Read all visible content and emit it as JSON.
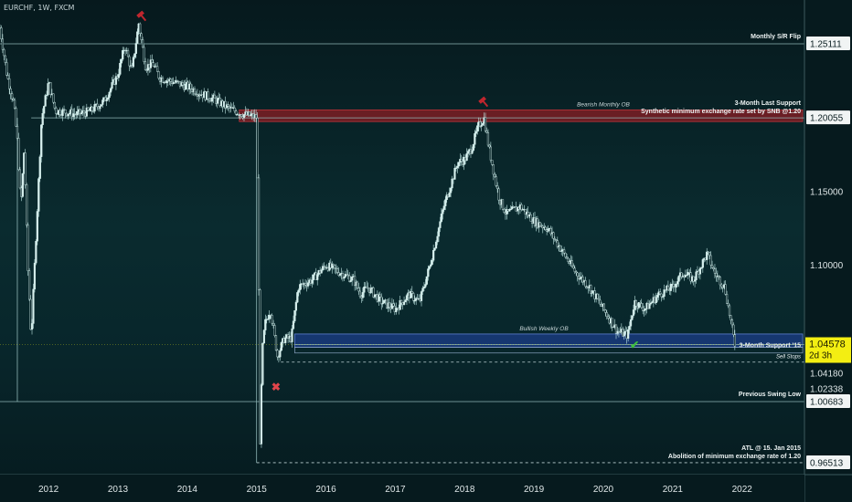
{
  "symbol": "EURCHF, 1W, FXCM",
  "colors": {
    "candle": "#d7f0ee",
    "wick": "#bfe6e3",
    "bearish_zone": "#8b1e24",
    "bullish_zone": "#1d3f8f",
    "line": "#8fb6b6",
    "current": "#f3ee12",
    "mark": "#c0262e",
    "check": "#3fbf3f"
  },
  "chart_data": {
    "type": "line",
    "title": "",
    "xlabel": "",
    "ylabel": "",
    "xlim": [
      2011.3,
      2022.9
    ],
    "ylim": [
      0.957,
      1.281
    ],
    "x_ticks": [
      "2012",
      "2013",
      "2014",
      "2015",
      "2016",
      "2017",
      "2018",
      "2019",
      "2020",
      "2021",
      "2022"
    ],
    "y_price_labels": [
      "1.25111",
      "1.20055",
      "1.15000",
      "1.10000",
      "1.04180",
      "1.02338",
      "1.00683",
      "0.96513"
    ],
    "current_price": "1.04578",
    "countdown": "2d 3h",
    "series": [
      {
        "x": [
          2011.3,
          2011.4,
          2011.5,
          2011.55,
          2011.6,
          2011.65,
          2011.7,
          2011.75,
          2011.8,
          2011.9,
          2012.0,
          2012.1,
          2012.2,
          2012.4,
          2012.6,
          2012.8,
          2013.0,
          2013.1,
          2013.2,
          2013.3,
          2013.4,
          2013.5,
          2013.6,
          2013.8,
          2014.0,
          2014.2,
          2014.4,
          2014.6,
          2014.8,
          2014.95,
          2015.0,
          2015.03,
          2015.05,
          2015.08,
          2015.12,
          2015.2,
          2015.3,
          2015.4,
          2015.5,
          2015.6,
          2015.8,
          2016.0,
          2016.2,
          2016.4,
          2016.5,
          2016.6,
          2016.8,
          2017.0,
          2017.2,
          2017.35,
          2017.5,
          2017.7,
          2017.9,
          2018.0,
          2018.1,
          2018.2,
          2018.28,
          2018.35,
          2018.5,
          2018.6,
          2018.8,
          2019.0,
          2019.2,
          2019.4,
          2019.6,
          2019.8,
          2020.0,
          2020.2,
          2020.35,
          2020.45,
          2020.6,
          2020.8,
          2021.0,
          2021.15,
          2021.3,
          2021.5,
          2021.6,
          2021.75,
          2021.9
        ],
        "values": [
          1.262,
          1.23,
          1.21,
          1.185,
          1.14,
          1.18,
          1.1,
          1.05,
          1.1,
          1.2,
          1.225,
          1.205,
          1.205,
          1.203,
          1.205,
          1.212,
          1.23,
          1.25,
          1.232,
          1.265,
          1.235,
          1.238,
          1.228,
          1.225,
          1.222,
          1.217,
          1.213,
          1.207,
          1.203,
          1.2015,
          1.201,
          1.09,
          0.975,
          1.04,
          1.06,
          1.07,
          1.038,
          1.05,
          1.05,
          1.085,
          1.09,
          1.1,
          1.095,
          1.09,
          1.08,
          1.085,
          1.075,
          1.07,
          1.08,
          1.075,
          1.1,
          1.14,
          1.17,
          1.172,
          1.18,
          1.195,
          1.2003,
          1.18,
          1.145,
          1.135,
          1.14,
          1.13,
          1.125,
          1.11,
          1.095,
          1.085,
          1.07,
          1.055,
          1.052,
          1.075,
          1.07,
          1.08,
          1.085,
          1.095,
          1.09,
          1.108,
          1.095,
          1.085,
          1.045
        ]
      }
    ],
    "zones": [
      {
        "name": "Bearish Monthly OB",
        "top": 1.206,
        "bottom": 1.198
      },
      {
        "name": "Bullish Weekly OB",
        "top": 1.053,
        "bottom": 1.044
      }
    ],
    "levels": [
      {
        "label": "Monthly S/R Flip",
        "value": 1.25111,
        "style": "solid"
      },
      {
        "label": "3-Month Last Support",
        "value": 1.20055,
        "style": "solid"
      },
      {
        "label": "Synthetic minimum exchange rate set by SNB @1.20",
        "value": 1.20055,
        "style": "solid"
      },
      {
        "label": "3-Month Support '15",
        "value": 1.04578,
        "style": "solid"
      },
      {
        "label": "Sell Stops",
        "value": 1.0338,
        "style": "dashed"
      },
      {
        "label": "Previous Swing Low",
        "value": 1.00683,
        "style": "solid"
      },
      {
        "label": "ATL @ 15. Jan 2015",
        "value": 0.96513,
        "style": "dashed"
      },
      {
        "label": "Abolition of minimum exchange rate of 1.20",
        "value": 0.96513,
        "style": "dashed"
      }
    ]
  }
}
